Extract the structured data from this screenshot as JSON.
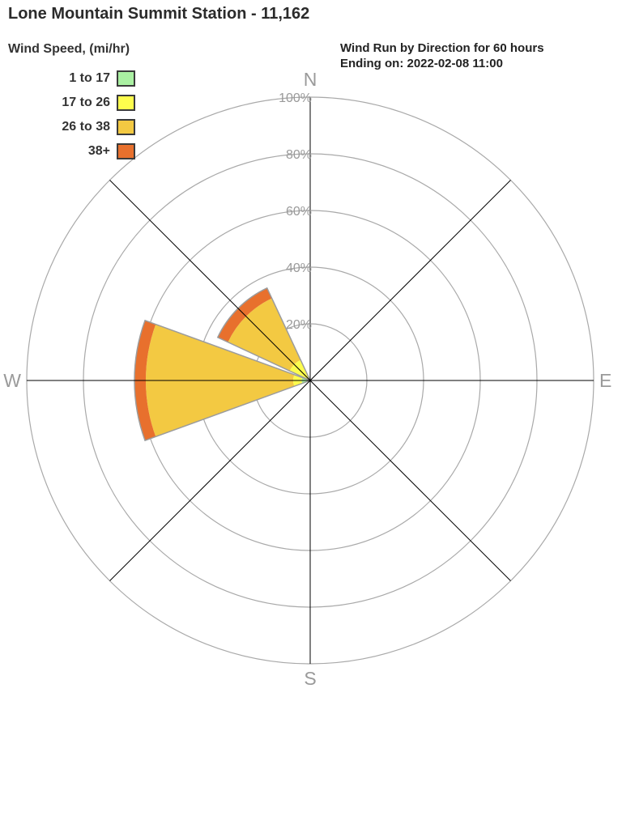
{
  "page_title": "Lone Mountain Summit Station - 11,162",
  "legend": {
    "title": "Wind Speed, (mi/hr)"
  },
  "chart_data": {
    "type": "wind_rose",
    "title": "Wind Run by Direction for 60 hours",
    "subtitle": "Ending on: 2022-02-08 11:00",
    "units": "percent of wind run",
    "max_ring": 100,
    "ring_values": [
      20,
      40,
      60,
      80,
      100
    ],
    "ring_labels": [
      "20%",
      "40%",
      "60%",
      "80%",
      "100%"
    ],
    "compass_points": [
      {
        "label": "N",
        "angle": 0
      },
      {
        "label": "E",
        "angle": 90
      },
      {
        "label": "S",
        "angle": 180
      },
      {
        "label": "W",
        "angle": 270
      }
    ],
    "directions": [
      "N",
      "NE",
      "E",
      "SE",
      "S",
      "SW",
      "W",
      "NW"
    ],
    "sector_width_deg": 40,
    "series": [
      {
        "name": "1 to 17",
        "color": "#aaf0a2",
        "values": [
          0,
          0,
          0,
          0,
          0,
          0,
          3,
          0
        ]
      },
      {
        "name": "17 to 26",
        "color": "#fdfd4d",
        "values": [
          0,
          0,
          0,
          0,
          0,
          0,
          3,
          8
        ]
      },
      {
        "name": "26 to 38",
        "color": "#f3c942",
        "values": [
          0,
          0,
          0,
          0,
          0,
          0,
          52,
          24
        ]
      },
      {
        "name": "38+",
        "color": "#e8702d",
        "values": [
          0,
          0,
          0,
          0,
          0,
          0,
          4,
          4
        ]
      }
    ],
    "totals_by_direction": {
      "W": 62,
      "NW": 36
    }
  },
  "colors": {
    "background": "#ffffff",
    "grid": "#a9a9a9",
    "spoke": "#000000",
    "axis_label": "#9a9a9a",
    "wedge_outline": "#9c9c9c",
    "title_text": "#2b2b2b"
  }
}
